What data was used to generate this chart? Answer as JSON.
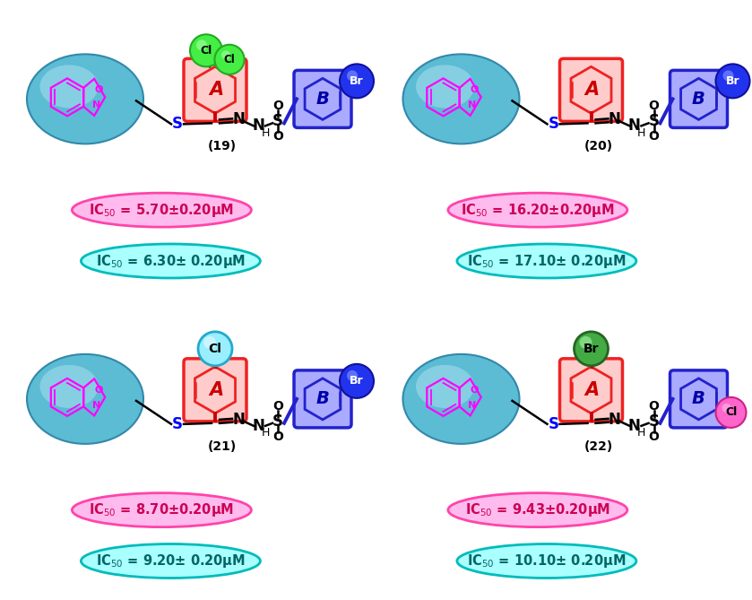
{
  "compounds": [
    {
      "id": "19",
      "panel": [
        0,
        1
      ],
      "sub_A_type": "two_green_Cl",
      "sub_B_type": "blue_Br",
      "ic50_pink": "IC$_{50}$ = 5.70±0.20μM",
      "ic50_cyan": "IC$_{50}$ = 6.30± 0.20μM"
    },
    {
      "id": "20",
      "panel": [
        1,
        1
      ],
      "sub_A_type": "none",
      "sub_B_type": "blue_Br",
      "ic50_pink": "IC$_{50}$ = 16.20±0.20μM",
      "ic50_cyan": "IC$_{50}$ = 17.10± 0.20μM"
    },
    {
      "id": "21",
      "panel": [
        0,
        0
      ],
      "sub_A_type": "cyan_Cl",
      "sub_B_type": "blue_Br",
      "ic50_pink": "IC$_{50}$ = 8.70±0.20μM",
      "ic50_cyan": "IC$_{50}$ = 9.20± 0.20μM"
    },
    {
      "id": "22",
      "panel": [
        1,
        0
      ],
      "sub_A_type": "green_Br",
      "sub_B_type": "pink_Cl",
      "ic50_pink": "IC$_{50}$ = 9.43±0.20μM",
      "ic50_cyan": "IC$_{50}$ = 10.10± 0.20μM"
    }
  ],
  "benzoxazole_color": "#ff00ff",
  "ring_A_face": "#ffcccc",
  "ring_A_edge": "#ee2222",
  "ring_B_face": "#aaaaff",
  "ring_B_edge": "#2222cc",
  "pink_face": "#ffbbee",
  "pink_edge": "#ff44aa",
  "pink_text": "#cc0055",
  "cyan_face": "#aaffff",
  "cyan_edge": "#00bbbb",
  "cyan_text": "#006666"
}
